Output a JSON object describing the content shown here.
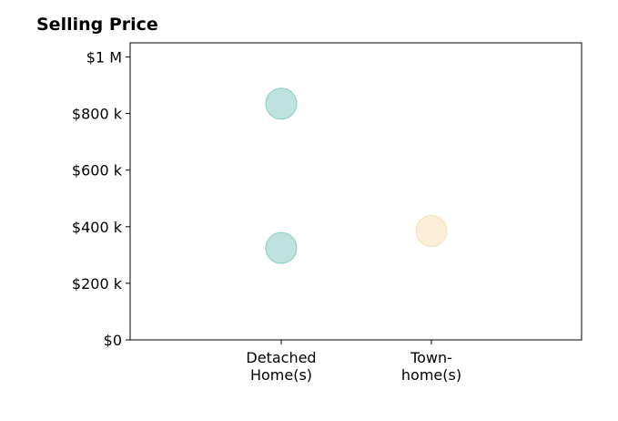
{
  "chart_data": {
    "type": "scatter",
    "title": "Selling Price",
    "xlabel": "",
    "ylabel": "",
    "categories": [
      [
        "Detached",
        "Home(s)"
      ],
      [
        "Town-",
        "home(s)"
      ]
    ],
    "ylim": [
      0,
      1050000
    ],
    "yticks": [
      {
        "value": 0,
        "label": "$0"
      },
      {
        "value": 200000,
        "label": "$200 k"
      },
      {
        "value": 400000,
        "label": "$400 k"
      },
      {
        "value": 600000,
        "label": "$600 k"
      },
      {
        "value": 800000,
        "label": "$800 k"
      },
      {
        "value": 1000000,
        "label": "$1 M"
      }
    ],
    "points": [
      {
        "category": 0,
        "y": 325000,
        "color": "#7ec8c0"
      },
      {
        "category": 0,
        "y": 835000,
        "color": "#7ec8c0"
      },
      {
        "category": 1,
        "y": 385000,
        "color": "#f5deb0"
      }
    ],
    "grid": false,
    "legend": "none"
  }
}
